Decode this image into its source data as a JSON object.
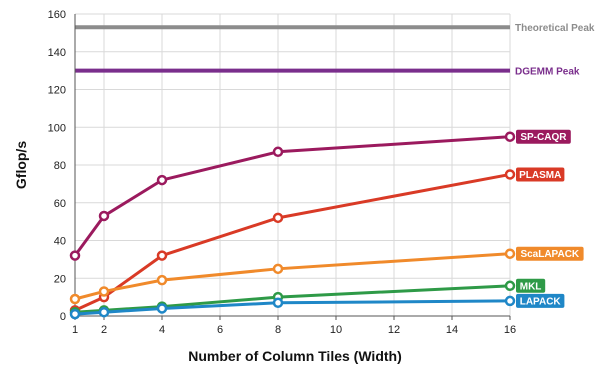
{
  "chart_data": {
    "type": "line",
    "title": "",
    "xlabel": "Number of Column Tiles (Width)",
    "ylabel": "Gflop/s",
    "xlim": [
      1,
      16
    ],
    "ylim": [
      0,
      160
    ],
    "x_ticks": [
      1,
      2,
      4,
      6,
      8,
      10,
      12,
      14,
      16
    ],
    "y_ticks": [
      0,
      20,
      40,
      60,
      80,
      100,
      120,
      140,
      160
    ],
    "grid": true,
    "reference_lines": [
      {
        "name": "Theoretical Peak",
        "value": 153,
        "color": "#8c8c8c"
      },
      {
        "name": "DGEMM Peak",
        "value": 130,
        "color": "#7a2e8c"
      }
    ],
    "series": [
      {
        "name": "SP-CAQR",
        "color": "#9b1a5e",
        "x": [
          1,
          2,
          4,
          8,
          16
        ],
        "values": [
          32,
          53,
          72,
          87,
          95
        ]
      },
      {
        "name": "PLASMA",
        "color": "#d93a26",
        "x": [
          1,
          2,
          4,
          8,
          16
        ],
        "values": [
          3,
          10,
          32,
          52,
          75
        ]
      },
      {
        "name": "ScaLAPACK",
        "color": "#f08a2b",
        "x": [
          1,
          2,
          4,
          8,
          16
        ],
        "values": [
          9,
          13,
          19,
          25,
          33
        ]
      },
      {
        "name": "MKL",
        "color": "#2e9a47",
        "x": [
          1,
          2,
          4,
          8,
          16
        ],
        "values": [
          2,
          3,
          5,
          10,
          16
        ]
      },
      {
        "name": "LAPACK",
        "color": "#1f87c7",
        "x": [
          1,
          2,
          4,
          8,
          16
        ],
        "values": [
          1,
          2,
          4,
          7,
          8
        ]
      }
    ]
  }
}
